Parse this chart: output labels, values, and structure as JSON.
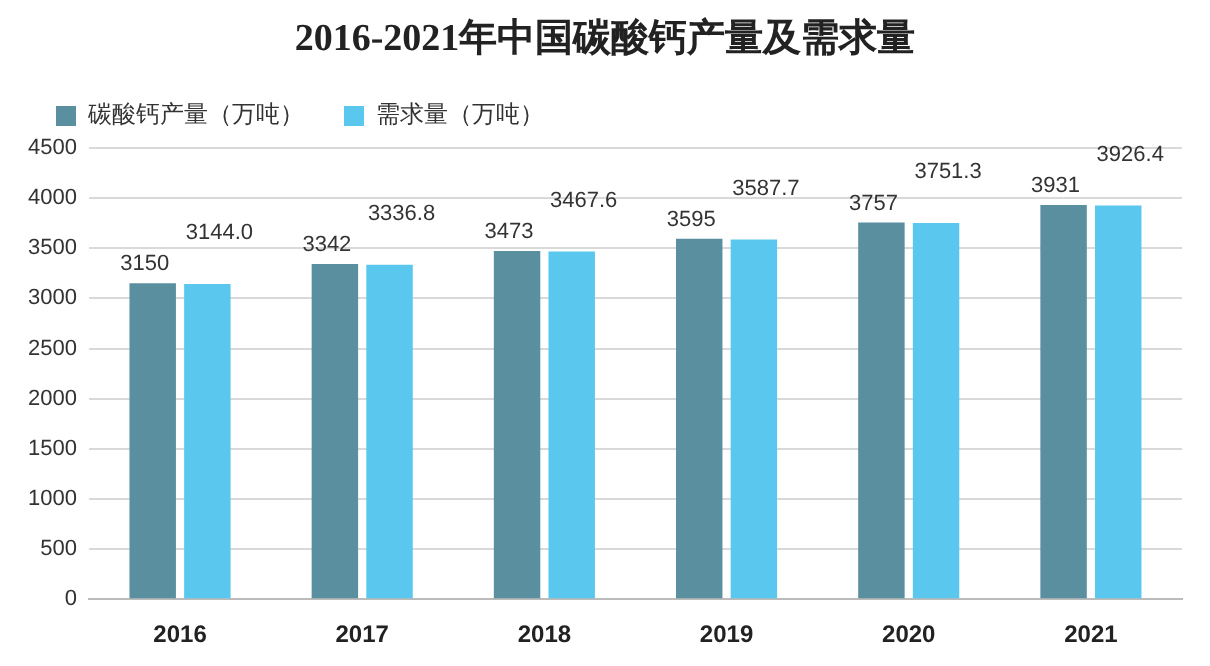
{
  "chart_data": {
    "type": "bar",
    "title": "2016-2021年中国碳酸钙产量及需求量",
    "categories": [
      "2016",
      "2017",
      "2018",
      "2019",
      "2020",
      "2021"
    ],
    "series": [
      {
        "name": "碳酸钙产量（万吨）",
        "color": "#5a8fa0",
        "values": [
          3150,
          3342,
          3473,
          3595,
          3757,
          3931
        ],
        "value_labels": [
          "3150",
          "3342",
          "3473",
          "3595",
          "3757",
          "3931"
        ]
      },
      {
        "name": "需求量（万吨）",
        "color": "#5ac8ee",
        "values": [
          3144.0,
          3336.8,
          3467.6,
          3587.7,
          3751.3,
          3926.4
        ],
        "value_labels": [
          "3144.0",
          "3336.8",
          "3467.6",
          "3587.7",
          "3751.3",
          "3926.4"
        ]
      }
    ],
    "ylim": [
      0,
      4500
    ],
    "yticks": [
      0,
      500,
      1000,
      1500,
      2000,
      2500,
      3000,
      3500,
      4000,
      4500
    ],
    "grid": "y",
    "legend": "top left"
  }
}
